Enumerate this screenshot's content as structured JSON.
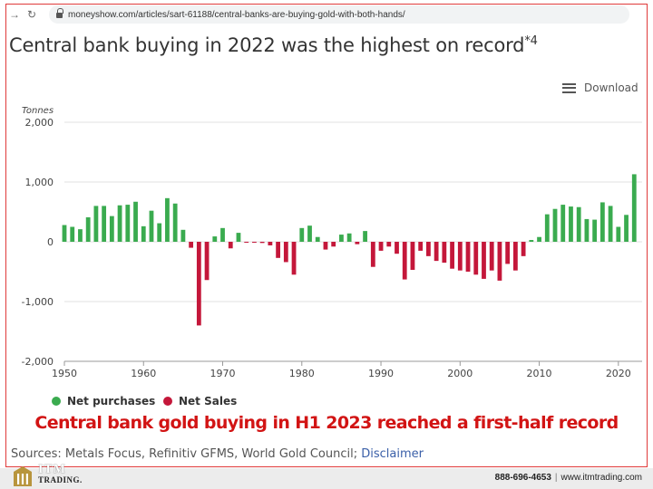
{
  "browser": {
    "url": "moneyshow.com/articles/sart-61188/central-banks-are-buying-gold-with-both-hands/",
    "back_icon": "arrow-right-icon",
    "reload_icon": "reload-icon"
  },
  "download": {
    "label": "Download",
    "icon": "hamburger-menu-icon"
  },
  "caption": "Central bank gold buying in H1 2023 reached a first-half record",
  "sources": {
    "text": "Sources: Metals Focus, Refinitiv GFMS, World Gold Council;",
    "link": "Disclaimer"
  },
  "footer": {
    "brand": "ITM",
    "brand_sub": "TRADING.",
    "phone": "888-696-4653",
    "separator": "|",
    "website": "www.itmtrading.com"
  },
  "colors": {
    "positive": "#3aab4f",
    "negative": "#c4173a",
    "caption": "#d21414",
    "frame": "#e03a3a"
  },
  "chart_data": {
    "type": "bar",
    "title": "Central bank buying in 2022 was the highest on record",
    "title_footnote": "*4",
    "ylabel": "Tonnes",
    "xlabel": "",
    "ylim": [
      -2000,
      2000
    ],
    "yticks": [
      2000,
      1000,
      0,
      -1000,
      -2000
    ],
    "ytick_labels": [
      "2,000",
      "1,000",
      "0",
      "-1,000",
      "-2,000"
    ],
    "xlim": [
      1950,
      2023
    ],
    "xticks": [
      1950,
      1960,
      1970,
      1980,
      1990,
      2000,
      2010,
      2020
    ],
    "legend": {
      "placement": "bottom-left",
      "entries": [
        {
          "name": "Net purchases",
          "color": "#3aab4f"
        },
        {
          "name": "Net Sales",
          "color": "#c4173a"
        }
      ]
    },
    "grid": "horizontal",
    "years": [
      1950,
      1951,
      1952,
      1953,
      1954,
      1955,
      1956,
      1957,
      1958,
      1959,
      1960,
      1961,
      1962,
      1963,
      1964,
      1965,
      1966,
      1967,
      1968,
      1969,
      1970,
      1971,
      1972,
      1973,
      1974,
      1975,
      1976,
      1977,
      1978,
      1979,
      1980,
      1981,
      1982,
      1983,
      1984,
      1985,
      1986,
      1987,
      1988,
      1989,
      1990,
      1991,
      1992,
      1993,
      1994,
      1995,
      1996,
      1997,
      1998,
      1999,
      2000,
      2001,
      2002,
      2003,
      2004,
      2005,
      2006,
      2007,
      2008,
      2009,
      2010,
      2011,
      2012,
      2013,
      2014,
      2015,
      2016,
      2017,
      2018,
      2019,
      2020,
      2021,
      2022
    ],
    "values": [
      280,
      250,
      210,
      410,
      600,
      600,
      430,
      610,
      620,
      670,
      260,
      520,
      310,
      730,
      640,
      200,
      -100,
      -1400,
      -640,
      90,
      230,
      -110,
      150,
      -10,
      -10,
      -20,
      -60,
      -270,
      -340,
      -550,
      230,
      270,
      80,
      -130,
      -80,
      120,
      140,
      -40,
      180,
      -420,
      -150,
      -80,
      -200,
      -630,
      -470,
      -150,
      -240,
      -320,
      -350,
      -450,
      -480,
      -500,
      -550,
      -620,
      -480,
      -650,
      -370,
      -480,
      -240,
      30,
      80,
      460,
      550,
      620,
      590,
      580,
      380,
      370,
      660,
      600,
      250,
      450,
      1130
    ]
  }
}
